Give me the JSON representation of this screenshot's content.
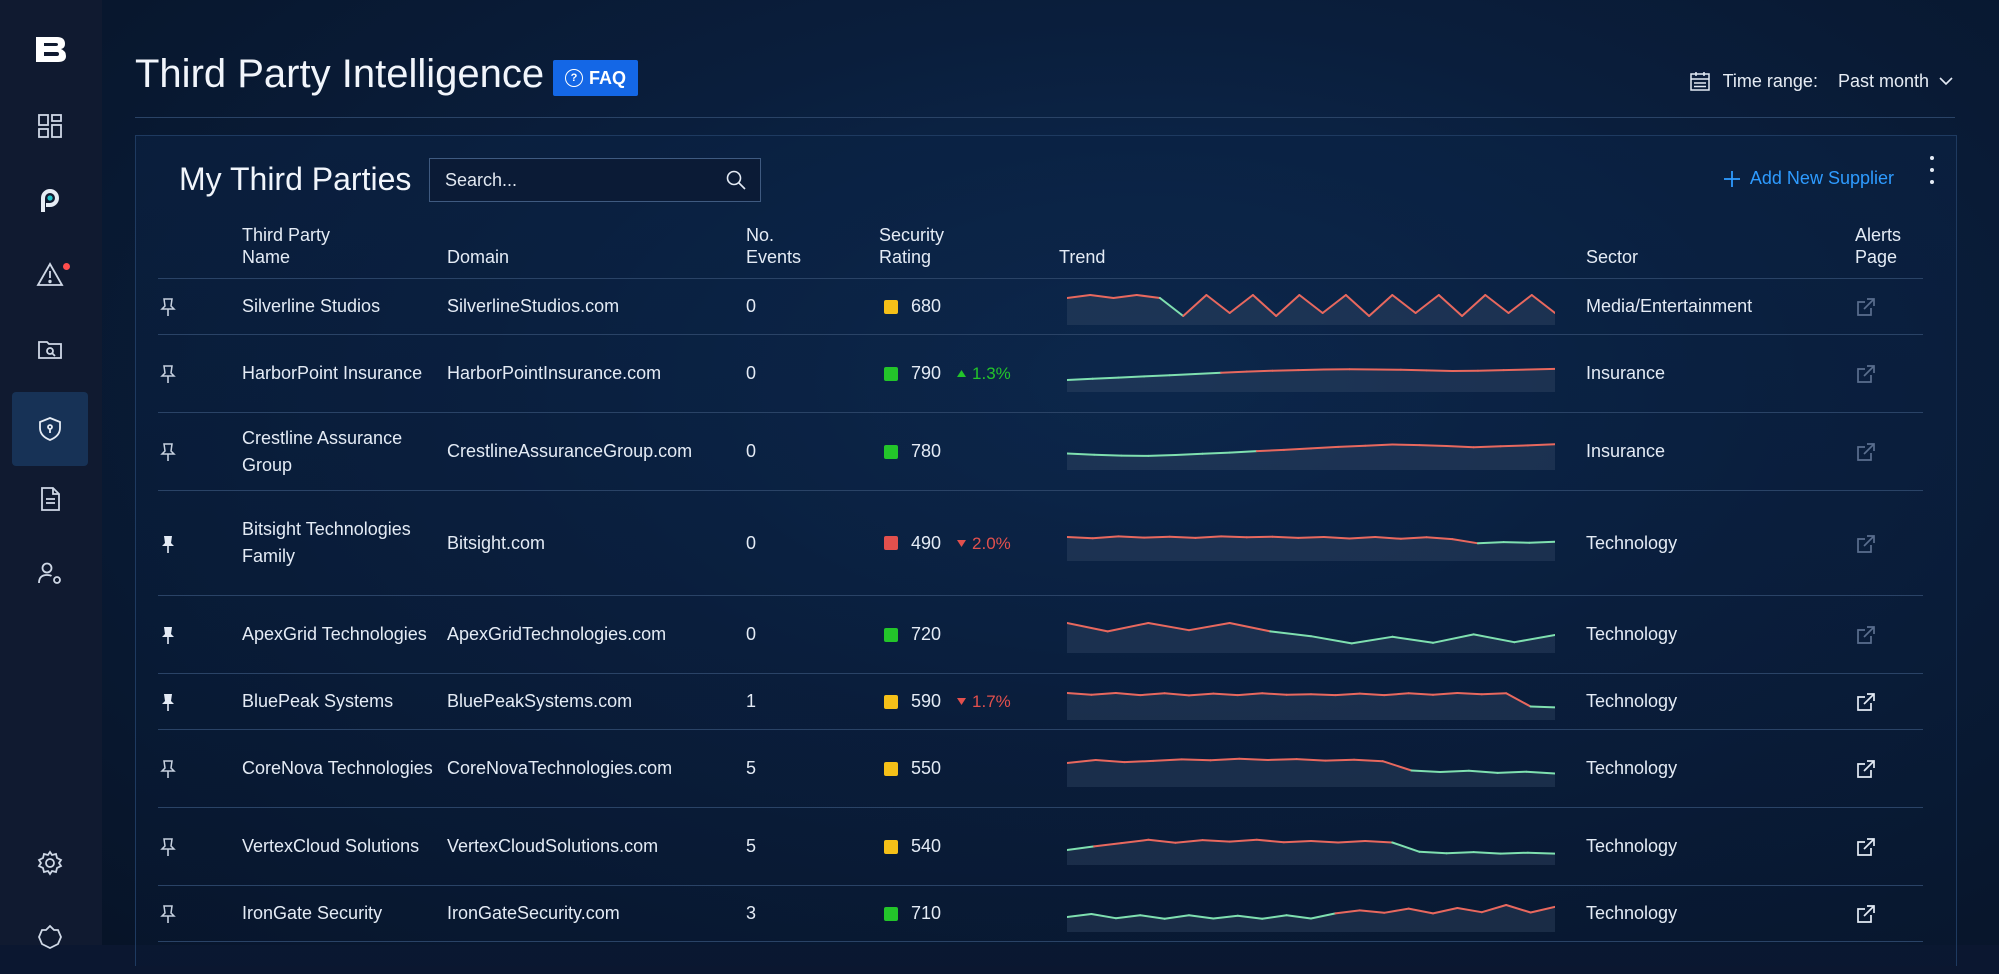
{
  "app": {
    "brand": "B"
  },
  "sidebar": {
    "items": [
      {
        "name": "dashboard"
      },
      {
        "name": "p-product"
      },
      {
        "name": "alerts",
        "badge": true
      },
      {
        "name": "investigations"
      },
      {
        "name": "third-party-intelligence",
        "active": true
      },
      {
        "name": "reports"
      },
      {
        "name": "user-settings"
      },
      {
        "name": "settings"
      },
      {
        "name": "integrations"
      }
    ]
  },
  "header": {
    "title": "Third Party Intelligence",
    "faq_label": "FAQ",
    "time_range_label": "Time range:",
    "time_range_value": "Past month"
  },
  "panel": {
    "title": "My Third Parties",
    "search_placeholder": "Search...",
    "add_supplier_label": "Add New Supplier"
  },
  "table": {
    "columns": {
      "name": "Third Party Name",
      "domain": "Domain",
      "events": "No. Events",
      "rating": "Security Rating",
      "trend": "Trend",
      "sector": "Sector",
      "alerts": "Alerts Page"
    },
    "colors": {
      "red": "#e2504d",
      "yellow": "#f5c018",
      "green": "#23c52a",
      "trend_red": "#e8685e",
      "trend_green": "#7fe0b0"
    },
    "rows": [
      {
        "pinned": false,
        "name": "Silverline Studios",
        "domain": "SilverlineStudios.com",
        "events": "0",
        "rating": "680",
        "rating_color": "yellow",
        "delta": "",
        "delta_dir": "",
        "sector": "Media/Entertainment",
        "alerts_enabled": false,
        "height": "h1",
        "trend": [
          8,
          9,
          8,
          9,
          8,
          2,
          9,
          3,
          9,
          2,
          9,
          3,
          9,
          2,
          9,
          3,
          9,
          2,
          9,
          3,
          9,
          3
        ]
      },
      {
        "pinned": false,
        "name": "HarborPoint Insurance",
        "domain": "HarborPointInsurance.com",
        "events": "0",
        "rating": "790",
        "rating_color": "green",
        "delta": "1.3%",
        "delta_dir": "up",
        "sector": "Insurance",
        "alerts_enabled": false,
        "height": "h2",
        "trend": [
          3,
          3.4,
          3.8,
          4.2,
          4.6,
          5,
          5.4,
          5.8,
          6.1,
          6.3,
          6.5,
          6.6,
          6.5,
          6.4,
          6.2,
          6,
          6.1,
          6.3,
          6.5,
          6.7
        ]
      },
      {
        "pinned": false,
        "name": "Crestline Assurance Group",
        "domain": "CrestlineAssuranceGroup.com",
        "events": "0",
        "rating": "780",
        "rating_color": "green",
        "delta": "",
        "delta_dir": "",
        "sector": "Insurance",
        "alerts_enabled": false,
        "height": "h2",
        "trend": [
          4.5,
          4.1,
          3.8,
          3.7,
          4,
          4.4,
          4.8,
          5.3,
          5.7,
          6.2,
          6.7,
          7.1,
          7.5,
          7.3,
          7,
          6.6,
          6.9,
          7.2,
          7.6
        ]
      },
      {
        "pinned": true,
        "name": "Bitsight Technologies Family",
        "domain": "Bitsight.com",
        "events": "0",
        "rating": "490",
        "rating_color": "red",
        "delta": "2.0%",
        "delta_dir": "down",
        "sector": "Technology",
        "alerts_enabled": false,
        "height": "h3",
        "trend": [
          7,
          6.6,
          7.2,
          6.8,
          7.1,
          6.7,
          7.2,
          6.9,
          7.1,
          6.7,
          7,
          6.5,
          7,
          6.4,
          6.9,
          6.3,
          4.9,
          5.3,
          5.1,
          5.4
        ]
      },
      {
        "pinned": true,
        "name": "ApexGrid Technologies",
        "domain": "ApexGridTechnologies.com",
        "events": "0",
        "rating": "720",
        "rating_color": "green",
        "delta": "",
        "delta_dir": "",
        "sector": "Technology",
        "alerts_enabled": false,
        "height": "h2",
        "trend": [
          9,
          6.2,
          9,
          6.6,
          9,
          6.2,
          4.6,
          2.2,
          4.4,
          2.4,
          5.2,
          2.6,
          5
        ]
      },
      {
        "pinned": true,
        "name": "BluePeak Systems",
        "domain": "BluePeakSystems.com",
        "events": "1",
        "rating": "590",
        "rating_color": "yellow",
        "delta": "1.7%",
        "delta_dir": "down",
        "sector": "Technology",
        "alerts_enabled": true,
        "height": "h1",
        "trend": [
          8,
          7.4,
          8,
          7.3,
          7.9,
          7.2,
          7.8,
          7.3,
          7.9,
          7.4,
          7.6,
          7.3,
          7.8,
          7.3,
          7.9,
          7.4,
          8,
          7.6,
          7.9,
          3.5,
          3.2
        ]
      },
      {
        "pinned": false,
        "name": "CoreNova Technologies",
        "domain": "CoreNovaTechnologies.com",
        "events": "5",
        "rating": "550",
        "rating_color": "yellow",
        "delta": "",
        "delta_dir": "",
        "sector": "Technology",
        "alerts_enabled": true,
        "height": "h2",
        "trend": [
          7,
          8,
          7.3,
          7.7,
          8.2,
          7.9,
          8.4,
          8,
          8.3,
          7.8,
          8.1,
          7.6,
          4.5,
          4,
          4.4,
          3.7,
          4.1,
          3.5
        ]
      },
      {
        "pinned": false,
        "name": "VertexCloud Solutions",
        "domain": "VertexCloudSolutions.com",
        "events": "5",
        "rating": "540",
        "rating_color": "yellow",
        "delta": "",
        "delta_dir": "",
        "sector": "Technology",
        "alerts_enabled": true,
        "height": "h2",
        "trend": [
          4,
          5.2,
          6.3,
          7.4,
          6.4,
          7.3,
          6.8,
          7.4,
          6.6,
          7,
          6.5,
          7,
          6.5,
          3.4,
          2.9,
          3.3,
          2.8,
          3.1,
          2.8
        ]
      },
      {
        "pinned": false,
        "name": "IronGate Security",
        "domain": "IronGateSecurity.com",
        "events": "3",
        "rating": "710",
        "rating_color": "green",
        "delta": "",
        "delta_dir": "",
        "sector": "Technology",
        "alerts_enabled": true,
        "height": "h1",
        "trend": [
          4,
          5,
          3.6,
          4.6,
          3.4,
          4.6,
          3.5,
          4.4,
          3.4,
          4.6,
          3.5,
          5.2,
          6.2,
          5.4,
          6.8,
          5.2,
          7,
          5.6,
          8,
          5.5,
          7.4
        ]
      }
    ]
  }
}
